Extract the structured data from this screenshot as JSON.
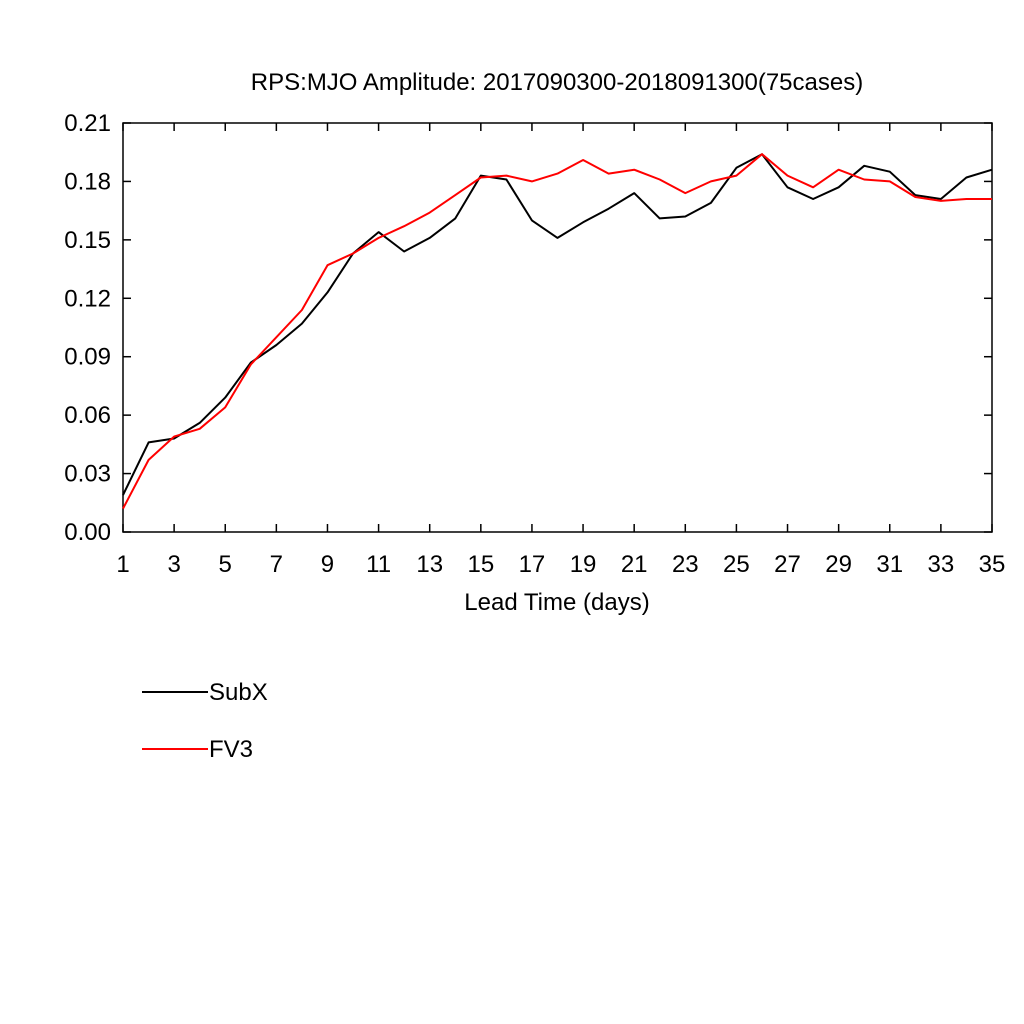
{
  "chart_data": {
    "type": "line",
    "title": "RPS:MJO Amplitude: 2017090300-2018091300(75cases)",
    "xlabel": "Lead Time (days)",
    "ylabel": "",
    "xlim": [
      1,
      35
    ],
    "ylim": [
      0,
      0.21
    ],
    "x_ticks": [
      "1",
      "3",
      "5",
      "7",
      "9",
      "11",
      "13",
      "15",
      "17",
      "19",
      "21",
      "23",
      "25",
      "27",
      "29",
      "31",
      "33",
      "35"
    ],
    "y_ticks": [
      "0.00",
      "0.03",
      "0.06",
      "0.09",
      "0.12",
      "0.15",
      "0.18",
      "0.21"
    ],
    "grid": false,
    "legend_position": "bottom-left",
    "x": [
      1,
      2,
      3,
      4,
      5,
      6,
      7,
      8,
      9,
      10,
      11,
      12,
      13,
      14,
      15,
      16,
      17,
      18,
      19,
      20,
      21,
      22,
      23,
      24,
      25,
      26,
      27,
      28,
      29,
      30,
      31,
      32,
      33,
      34,
      35
    ],
    "series": [
      {
        "name": "SubX",
        "color": "#000000",
        "values": [
          0.019,
          0.046,
          0.048,
          0.056,
          0.069,
          0.087,
          0.096,
          0.107,
          0.123,
          0.143,
          0.154,
          0.144,
          0.151,
          0.161,
          0.183,
          0.181,
          0.16,
          0.151,
          0.159,
          0.166,
          0.174,
          0.161,
          0.162,
          0.169,
          0.187,
          0.194,
          0.177,
          0.171,
          0.177,
          0.188,
          0.185,
          0.173,
          0.171,
          0.182,
          0.186
        ]
      },
      {
        "name": "FV3",
        "color": "#ff0000",
        "values": [
          0.012,
          0.037,
          0.049,
          0.053,
          0.064,
          0.086,
          0.1,
          0.114,
          0.137,
          0.143,
          0.151,
          0.157,
          0.164,
          0.173,
          0.182,
          0.183,
          0.18,
          0.184,
          0.191,
          0.184,
          0.186,
          0.181,
          0.174,
          0.18,
          0.183,
          0.194,
          0.183,
          0.177,
          0.186,
          0.181,
          0.18,
          0.172,
          0.17,
          0.171,
          0.171
        ]
      }
    ]
  }
}
